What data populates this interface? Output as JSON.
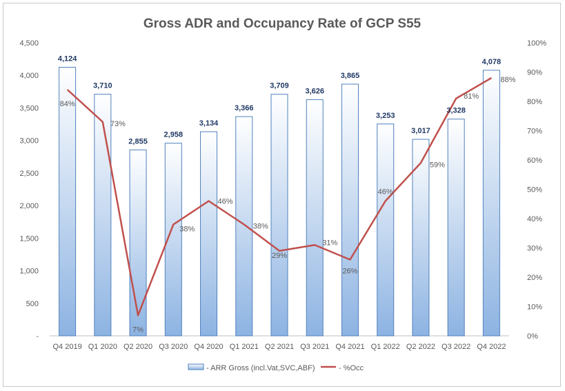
{
  "chart_data": {
    "type": "bar",
    "title": "Gross ADR and Occupancy Rate of GCP S55",
    "categories": [
      "Q4 2019",
      "Q1 2020",
      "Q2 2020",
      "Q3 2020",
      "Q4 2020",
      "Q1 2021",
      "Q2 2021",
      "Q3 2021",
      "Q4 2021",
      "Q1 2022",
      "Q2 2022",
      "Q3 2022",
      "Q4 2022"
    ],
    "series": [
      {
        "name": "- ARR Gross (incl.Vat,SVC,ABF)",
        "type": "bar",
        "axis": "left",
        "values": [
          4124,
          3710,
          2855,
          2958,
          3134,
          3366,
          3709,
          3626,
          3865,
          3253,
          3017,
          3328,
          4078
        ],
        "labels": [
          "4,124",
          "3,710",
          "2,855",
          "2,958",
          "3,134",
          "3,366",
          "3,709",
          "3,626",
          "3,865",
          "3,253",
          "3,017",
          "3,328",
          "4,078"
        ],
        "color": "#4f81bd"
      },
      {
        "name": "- %Occ",
        "type": "line",
        "axis": "right",
        "values": [
          84,
          73,
          7,
          38,
          46,
          38,
          29,
          31,
          26,
          46,
          59,
          81,
          88
        ],
        "labels": [
          "84%",
          "73%",
          "7%",
          "38%",
          "46%",
          "38%",
          "29%",
          "31%",
          "26%",
          "46%",
          "59%",
          "81%",
          "88%"
        ],
        "color": "#c0504d"
      }
    ],
    "ylim": [
      0,
      4500
    ],
    "y_ticks": [
      "-",
      "500",
      "1,000",
      "1,500",
      "2,000",
      "2,500",
      "3,000",
      "3,500",
      "4,000",
      "4,500"
    ],
    "y2lim": [
      0,
      100
    ],
    "y2_ticks": [
      "0%",
      "10%",
      "20%",
      "30%",
      "40%",
      "50%",
      "60%",
      "70%",
      "80%",
      "90%",
      "100%"
    ],
    "grid": false,
    "legend_position": "bottom"
  }
}
